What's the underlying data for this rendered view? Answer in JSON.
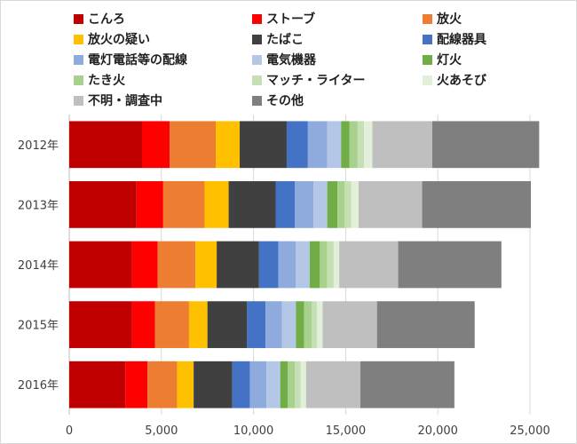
{
  "chart_data": {
    "type": "bar",
    "orientation": "horizontal",
    "stacked": true,
    "categories": [
      "2012年",
      "2013年",
      "2014年",
      "2015年",
      "2016年"
    ],
    "xlim": [
      0,
      25000
    ],
    "xticks": [
      0,
      5000,
      10000,
      15000,
      20000,
      25000
    ],
    "xtick_labels": [
      "0",
      "5,000",
      "10,000",
      "15,000",
      "20,000",
      "25,000"
    ],
    "grid": "vertical",
    "legend_position": "top",
    "series": [
      {
        "name": "こんろ",
        "color": "#c00000",
        "values": [
          3950,
          3650,
          3400,
          3400,
          3050
        ]
      },
      {
        "name": "ストーブ",
        "color": "#ff0000",
        "values": [
          1500,
          1450,
          1400,
          1250,
          1200
        ]
      },
      {
        "name": "放火",
        "color": "#ed7d31",
        "values": [
          2500,
          2250,
          2050,
          1850,
          1600
        ]
      },
      {
        "name": "放火の疑い",
        "color": "#ffc000",
        "values": [
          1300,
          1300,
          1150,
          1000,
          900
        ]
      },
      {
        "name": "たばこ",
        "color": "#404040",
        "values": [
          2550,
          2550,
          2300,
          2150,
          2100
        ]
      },
      {
        "name": "配線器具",
        "color": "#4472c4",
        "values": [
          1150,
          1050,
          1050,
          1000,
          950
        ]
      },
      {
        "name": "電灯電話等の配線",
        "color": "#8faadc",
        "values": [
          1050,
          1000,
          950,
          900,
          900
        ]
      },
      {
        "name": "電気機器",
        "color": "#b4c7e7",
        "values": [
          750,
          750,
          750,
          750,
          750
        ]
      },
      {
        "name": "灯火",
        "color": "#70ad47",
        "values": [
          450,
          550,
          550,
          450,
          400
        ]
      },
      {
        "name": "たき火",
        "color": "#a9d18e",
        "values": [
          450,
          400,
          400,
          400,
          400
        ]
      },
      {
        "name": "マッチ・ライター",
        "color": "#c5e0b4",
        "values": [
          350,
          350,
          350,
          300,
          300
        ]
      },
      {
        "name": "火あそび",
        "color": "#e2f0d9",
        "values": [
          450,
          400,
          300,
          300,
          300
        ]
      },
      {
        "name": "不明・調査中",
        "color": "#bfbfbf",
        "values": [
          3250,
          3450,
          3200,
          2950,
          2950
        ]
      },
      {
        "name": "その他",
        "color": "#7f7f7f",
        "values": [
          5800,
          5900,
          5600,
          5300,
          5100
        ]
      }
    ]
  }
}
